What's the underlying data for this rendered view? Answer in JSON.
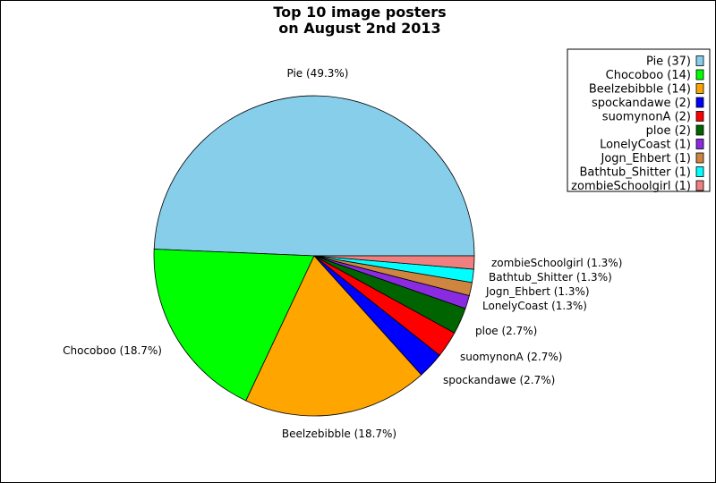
{
  "chart_data": {
    "type": "pie",
    "title_lines": [
      "Top 10 image posters",
      "on August 2nd 2013"
    ],
    "slices": [
      {
        "name": "Pie",
        "count": 37,
        "percent_label": "49.3%",
        "color": "#87CEEB"
      },
      {
        "name": "Chocoboo",
        "count": 14,
        "percent_label": "18.7%",
        "color": "#00FF00"
      },
      {
        "name": "Beelzebibble",
        "count": 14,
        "percent_label": "18.7%",
        "color": "#FFA500"
      },
      {
        "name": "spockandawe",
        "count": 2,
        "percent_label": "2.7%",
        "color": "#0000FF"
      },
      {
        "name": "suomynonA",
        "count": 2,
        "percent_label": "2.7%",
        "color": "#FF0000"
      },
      {
        "name": "ploe",
        "count": 2,
        "percent_label": "2.7%",
        "color": "#006400"
      },
      {
        "name": "LonelyCoast",
        "count": 1,
        "percent_label": "1.3%",
        "color": "#8A2BE2"
      },
      {
        "name": "Jogn_Ehbert",
        "count": 1,
        "percent_label": "1.3%",
        "color": "#CD853F"
      },
      {
        "name": "Bathtub_Shitter",
        "count": 1,
        "percent_label": "1.3%",
        "color": "#00FFFF"
      },
      {
        "name": "zombieSchoolgirl",
        "count": 1,
        "percent_label": "1.3%",
        "color": "#F08080"
      }
    ],
    "legend_placement": "top-right",
    "start_angle": "3 o'clock, counter-clockwise"
  }
}
